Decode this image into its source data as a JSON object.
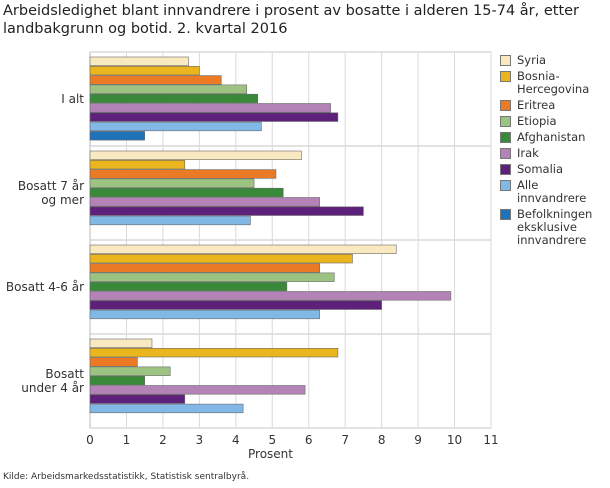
{
  "chart_data": {
    "type": "bar",
    "orientation": "horizontal",
    "title": "Arbeidsledighet blant innvandrere i prosent av bosatte i alderen 15-74 år, etter landbakgrunn og botid. 2. kvartal 2016",
    "xlabel": "Prosent",
    "ylabel": "",
    "xlim": [
      0,
      11
    ],
    "xticks": [
      "0",
      "1",
      "2",
      "3",
      "4",
      "5",
      "6",
      "7",
      "8",
      "9",
      "10",
      "11"
    ],
    "grid": true,
    "legend_position": "right",
    "categories": [
      "I alt",
      "Bosatt 7 år og mer",
      "Bosatt 4-6 år",
      "Bosatt under 4 år"
    ],
    "series": [
      {
        "name": "Syria",
        "color": "#f9e9c0",
        "values": [
          2.7,
          5.8,
          8.4,
          1.7
        ]
      },
      {
        "name": "Bosnia-Hercegovina",
        "color": "#ebb51e",
        "values": [
          3.0,
          2.6,
          7.2,
          6.8
        ]
      },
      {
        "name": "Eritrea",
        "color": "#eb7a24",
        "values": [
          3.6,
          5.1,
          6.3,
          1.3
        ]
      },
      {
        "name": "Etiopia",
        "color": "#9dc383",
        "values": [
          4.3,
          4.5,
          6.7,
          2.2
        ]
      },
      {
        "name": "Afghanistan",
        "color": "#388a38",
        "values": [
          4.6,
          5.3,
          5.4,
          1.5
        ]
      },
      {
        "name": "Irak",
        "color": "#b383b8",
        "values": [
          6.6,
          6.3,
          9.9,
          5.9
        ]
      },
      {
        "name": "Somalia",
        "color": "#5e217b",
        "values": [
          6.8,
          7.5,
          8.0,
          2.6
        ]
      },
      {
        "name": "Alle innvandrere",
        "color": "#82b8e6",
        "values": [
          4.7,
          4.4,
          6.3,
          4.2
        ]
      },
      {
        "name": "Befolkningen eksklusive innvandrere",
        "color": "#1f71b8",
        "values": [
          1.5,
          null,
          null,
          null
        ]
      }
    ]
  },
  "category_labels": [
    [
      "I alt"
    ],
    [
      "Bosatt 7 år",
      "og mer"
    ],
    [
      "Bosatt 4-6 år"
    ],
    [
      "Bosatt",
      "under 4 år"
    ]
  ],
  "legend_labels": [
    [
      "Syria"
    ],
    [
      "Bosnia-",
      "Hercegovina"
    ],
    [
      "Eritrea"
    ],
    [
      "Etiopia"
    ],
    [
      "Afghanistan"
    ],
    [
      "Irak"
    ],
    [
      "Somalia"
    ],
    [
      "Alle",
      "innvandrere"
    ],
    [
      "Befolkningen",
      "eksklusive",
      "innvandrere"
    ]
  ],
  "source": "Kilde: Arbeidsmarkedsstatistikk, Statistisk sentralbyrå."
}
